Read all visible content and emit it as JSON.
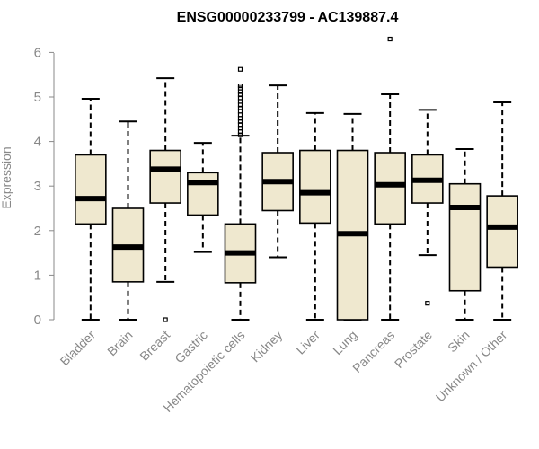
{
  "chart_data": {
    "type": "boxplot",
    "title": "ENSG00000233799 - AC139887.4",
    "xlabel": "",
    "ylabel": "Expression",
    "ylim": [
      0,
      6.3
    ],
    "yticks": [
      0,
      1,
      2,
      3,
      4,
      5,
      6
    ],
    "categories": [
      "Bladder",
      "Brain",
      "Breast",
      "Gastric",
      "Hematopoietic cells",
      "Kidney",
      "Liver",
      "Lung",
      "Pancreas",
      "Prostate",
      "Skin",
      "Unknown / Other"
    ],
    "colors": {
      "box_fill": "#efe8cf",
      "box_stroke": "#000000",
      "axis": "#888888"
    },
    "boxes": [
      {
        "min": 0.0,
        "q1": 2.15,
        "median": 2.72,
        "q3": 3.7,
        "max": 4.96,
        "outliers": []
      },
      {
        "min": 0.0,
        "q1": 0.85,
        "median": 1.63,
        "q3": 2.5,
        "max": 4.45,
        "outliers": []
      },
      {
        "min": 0.85,
        "q1": 2.62,
        "median": 3.38,
        "q3": 3.8,
        "max": 5.42,
        "outliers": [
          0.0
        ]
      },
      {
        "min": 1.52,
        "q1": 2.35,
        "median": 3.08,
        "q3": 3.3,
        "max": 3.97,
        "outliers": []
      },
      {
        "min": 0.0,
        "q1": 0.83,
        "median": 1.5,
        "q3": 2.15,
        "max": 4.13,
        "outliers": [
          4.15,
          4.22,
          4.3,
          4.38,
          4.45,
          4.52,
          4.6,
          4.68,
          4.75,
          4.82,
          4.9,
          4.98,
          5.05,
          5.12,
          5.2,
          5.25,
          5.62
        ]
      },
      {
        "min": 1.4,
        "q1": 2.45,
        "median": 3.1,
        "q3": 3.75,
        "max": 5.26,
        "outliers": []
      },
      {
        "min": 0.0,
        "q1": 2.17,
        "median": 2.85,
        "q3": 3.8,
        "max": 4.64,
        "outliers": []
      },
      {
        "min": 0.0,
        "q1": 0.0,
        "median": 1.93,
        "q3": 3.8,
        "max": 4.62,
        "outliers": []
      },
      {
        "min": 0.0,
        "q1": 2.15,
        "median": 3.03,
        "q3": 3.75,
        "max": 5.06,
        "outliers": [
          6.3
        ]
      },
      {
        "min": 1.45,
        "q1": 2.62,
        "median": 3.13,
        "q3": 3.7,
        "max": 4.71,
        "outliers": [
          0.37
        ]
      },
      {
        "min": 0.0,
        "q1": 0.65,
        "median": 2.52,
        "q3": 3.05,
        "max": 3.83,
        "outliers": []
      },
      {
        "min": 0.0,
        "q1": 1.18,
        "median": 2.08,
        "q3": 2.78,
        "max": 4.88,
        "outliers": []
      }
    ]
  }
}
